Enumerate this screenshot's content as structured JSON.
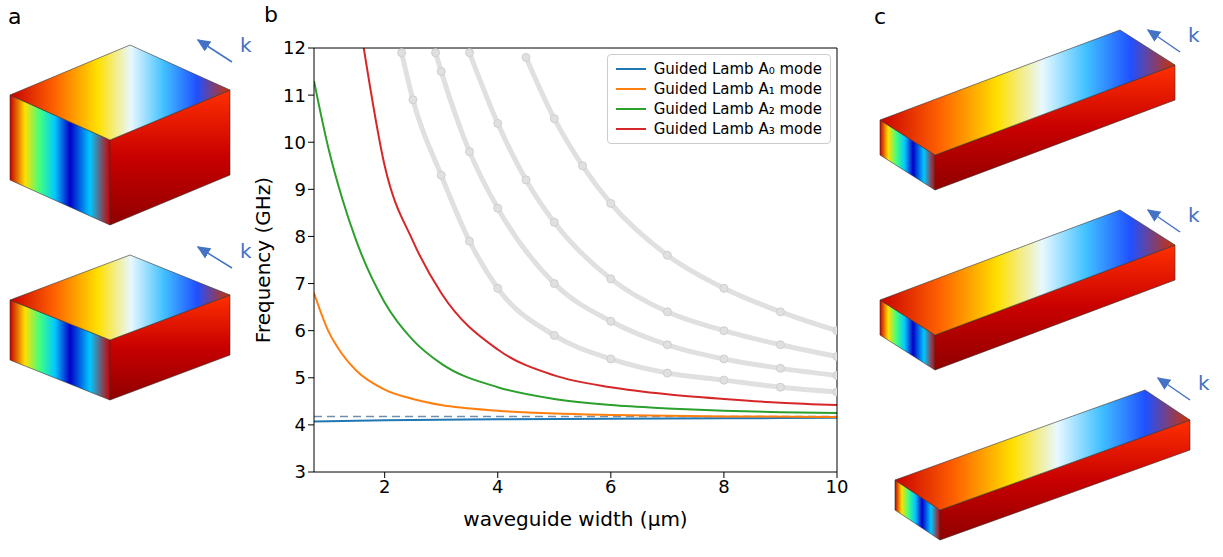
{
  "chart_data": {
    "type": "line",
    "panel": "b",
    "xlabel": "waveguide width (μm)",
    "ylabel": "Frequency (GHz)",
    "xlim": [
      0.75,
      10
    ],
    "xticks": [
      2,
      4,
      6,
      8,
      10
    ],
    "ylim": [
      3,
      12
    ],
    "yticks": [
      3,
      4,
      5,
      6,
      7,
      8,
      9,
      10,
      11,
      12
    ],
    "grid": false,
    "legend": "upper right",
    "series": [
      {
        "name": "Guided Lamb A₀ mode",
        "color": "#1f77b4",
        "x": [
          0.75,
          2,
          4,
          6,
          8,
          10
        ],
        "values": [
          4.07,
          4.1,
          4.12,
          4.13,
          4.14,
          4.15
        ]
      },
      {
        "name": "Guided Lamb A₁ mode",
        "color": "#ff7f0e",
        "x": [
          0.75,
          1,
          1.25,
          1.5,
          2,
          2.5,
          3,
          4,
          5,
          6,
          8,
          10
        ],
        "values": [
          6.8,
          6.0,
          5.5,
          5.15,
          4.75,
          4.55,
          4.42,
          4.3,
          4.24,
          4.21,
          4.18,
          4.17
        ]
      },
      {
        "name": "Guided Lamb A₂ mode",
        "color": "#2ca02c",
        "x": [
          0.75,
          1,
          1.25,
          1.5,
          2,
          2.5,
          3,
          4,
          5,
          6,
          7,
          8,
          9,
          10
        ],
        "values": [
          11.3,
          9.9,
          8.8,
          7.9,
          6.6,
          5.8,
          5.3,
          4.8,
          4.55,
          4.42,
          4.35,
          4.3,
          4.27,
          4.25
        ]
      },
      {
        "name": "Guided Lamb A₃ mode",
        "color": "#d62728",
        "x": [
          1.63,
          2,
          2.5,
          3,
          4,
          5,
          6,
          7,
          8,
          9,
          10
        ],
        "values": [
          12.0,
          9.5,
          7.9,
          6.8,
          5.6,
          5.05,
          4.8,
          4.65,
          4.55,
          4.47,
          4.42
        ]
      }
    ],
    "reference_lines": [
      {
        "y": 4.18,
        "color": "#6f8fb0",
        "line_style": "dashed"
      }
    ],
    "other_modes": {
      "color": "#e0e0e0",
      "marker": "circle",
      "line_style": "solid",
      "series": [
        {
          "x": [
            2.3,
            2.5,
            3,
            3.5,
            4,
            5,
            6,
            7,
            8,
            9,
            10
          ],
          "values": [
            11.9,
            10.9,
            9.3,
            7.9,
            6.9,
            5.9,
            5.4,
            5.1,
            4.95,
            4.8,
            4.7
          ]
        },
        {
          "x": [
            2.9,
            3,
            3.5,
            4,
            5,
            6,
            7,
            8,
            9,
            10
          ],
          "values": [
            11.9,
            11.5,
            9.8,
            8.6,
            7.0,
            6.2,
            5.7,
            5.4,
            5.2,
            5.05
          ]
        },
        {
          "x": [
            3.5,
            4,
            4.5,
            5,
            6,
            7,
            8,
            9,
            10
          ],
          "values": [
            11.9,
            10.4,
            9.2,
            8.3,
            7.1,
            6.4,
            6.0,
            5.7,
            5.45
          ]
        },
        {
          "x": [
            4.5,
            5,
            5.5,
            6,
            7,
            8,
            9,
            10
          ],
          "values": [
            11.8,
            10.5,
            9.5,
            8.7,
            7.6,
            6.9,
            6.4,
            6.0
          ]
        }
      ]
    }
  },
  "illustrations": [
    {
      "panel": "a",
      "arrows": [
        "k",
        "k"
      ]
    },
    {
      "panel": "c",
      "arrows": [
        "k",
        "k",
        "k"
      ]
    }
  ]
}
